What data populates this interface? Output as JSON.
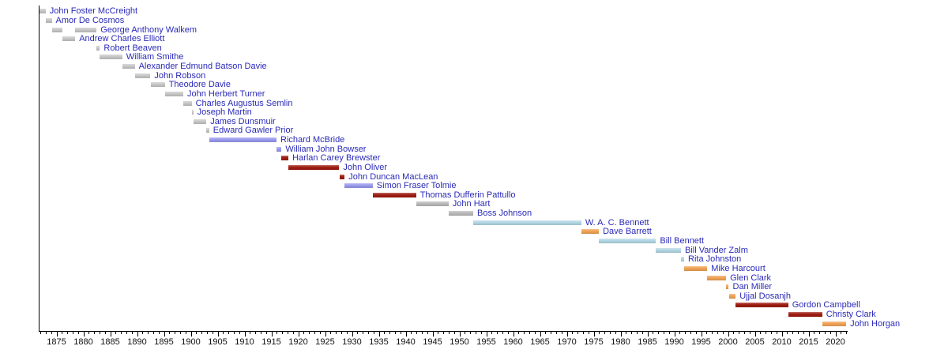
{
  "chart_data": {
    "type": "bar",
    "variant": "horizontal-timeline",
    "description_visible_text_only": true,
    "x_axis": {
      "range": [
        1871.6,
        2022.3
      ],
      "minor_tick_step": 1,
      "major_tick_step": 5,
      "tick_labels": [
        "1875",
        "1880",
        "1885",
        "1890",
        "1895",
        "1900",
        "1905",
        "1910",
        "1915",
        "1920",
        "1925",
        "1930",
        "1935",
        "1940",
        "1945",
        "1950",
        "1955",
        "1960",
        "1965",
        "1970",
        "1975",
        "1980",
        "1985",
        "1990",
        "1995",
        "2000",
        "2005",
        "2010",
        "2015",
        "2020"
      ],
      "grid": false
    },
    "legend": null,
    "label_color": "#2a2ab8",
    "axis_color": "#000000",
    "party_colors": {
      "none": "#c6c6c6",
      "conservative": "#9999ee",
      "liberal": "#9e1c10",
      "coalition": "#b9b9b9",
      "socred": "#b2d6e4",
      "ndp": "#f0a254"
    },
    "series": [
      {
        "name": "John Foster McCreight",
        "party": "none",
        "terms": [
          [
            1871.87,
            1872.98
          ]
        ]
      },
      {
        "name": "Amor De Cosmos",
        "party": "none",
        "terms": [
          [
            1872.98,
            1874.12
          ]
        ]
      },
      {
        "name": "George Anthony Walkem",
        "party": "none",
        "terms": [
          [
            1874.12,
            1876.08
          ],
          [
            1878.48,
            1882.45
          ]
        ]
      },
      {
        "name": "Andrew Charles Elliott",
        "party": "none",
        "terms": [
          [
            1876.08,
            1878.48
          ]
        ]
      },
      {
        "name": "Robert Beaven",
        "party": "none",
        "terms": [
          [
            1882.45,
            1883.08
          ]
        ]
      },
      {
        "name": "William Smithe",
        "party": "none",
        "terms": [
          [
            1883.08,
            1887.24
          ]
        ]
      },
      {
        "name": "Alexander Edmund Batson Davie",
        "party": "none",
        "terms": [
          [
            1887.25,
            1889.58
          ]
        ]
      },
      {
        "name": "John Robson",
        "party": "none",
        "terms": [
          [
            1889.58,
            1892.49
          ]
        ]
      },
      {
        "name": "Theodore Davie",
        "party": "none",
        "terms": [
          [
            1892.5,
            1895.17
          ]
        ]
      },
      {
        "name": "John Herbert Turner",
        "party": "none",
        "terms": [
          [
            1895.17,
            1898.6
          ]
        ]
      },
      {
        "name": "Charles Augustus Semlin",
        "party": "none",
        "terms": [
          [
            1898.62,
            1900.16
          ]
        ]
      },
      {
        "name": "Joseph Martin",
        "party": "none",
        "terms": [
          [
            1900.16,
            1900.45
          ]
        ]
      },
      {
        "name": "James Dunsmuir",
        "party": "none",
        "terms": [
          [
            1900.45,
            1902.89
          ]
        ]
      },
      {
        "name": "Edward Gawler Prior",
        "party": "none",
        "terms": [
          [
            1902.89,
            1903.42
          ]
        ]
      },
      {
        "name": "Richard McBride",
        "party": "conservative",
        "terms": [
          [
            1903.42,
            1915.96
          ]
        ]
      },
      {
        "name": "William John Bowser",
        "party": "conservative",
        "terms": [
          [
            1915.96,
            1916.9
          ]
        ]
      },
      {
        "name": "Harlan Carey Brewster",
        "party": "liberal",
        "terms": [
          [
            1916.9,
            1918.17
          ]
        ]
      },
      {
        "name": "John Oliver",
        "party": "liberal",
        "terms": [
          [
            1918.18,
            1927.63
          ]
        ]
      },
      {
        "name": "John Duncan MacLean",
        "party": "liberal",
        "terms": [
          [
            1927.64,
            1928.64
          ]
        ]
      },
      {
        "name": "Simon Fraser Tolmie",
        "party": "conservative",
        "terms": [
          [
            1928.64,
            1933.87
          ]
        ]
      },
      {
        "name": "Thomas Dufferin Pattullo",
        "party": "liberal",
        "terms": [
          [
            1933.87,
            1941.94
          ]
        ]
      },
      {
        "name": "John Hart",
        "party": "coalition",
        "terms": [
          [
            1941.94,
            1947.99
          ]
        ]
      },
      {
        "name": "Boss Johnson",
        "party": "coalition",
        "terms": [
          [
            1947.99,
            1952.58
          ]
        ]
      },
      {
        "name": "W. A. C. Bennett",
        "party": "socred",
        "terms": [
          [
            1952.58,
            1972.71
          ]
        ]
      },
      {
        "name": "Dave Barrett",
        "party": "ndp",
        "terms": [
          [
            1972.71,
            1975.97
          ]
        ]
      },
      {
        "name": "Bill Bennett",
        "party": "socred",
        "terms": [
          [
            1975.97,
            1986.6
          ]
        ]
      },
      {
        "name": "Bill Vander Zalm",
        "party": "socred",
        "terms": [
          [
            1986.6,
            1991.25
          ]
        ]
      },
      {
        "name": "Rita Johnston",
        "party": "socred",
        "terms": [
          [
            1991.25,
            1991.84
          ]
        ]
      },
      {
        "name": "Mike Harcourt",
        "party": "ndp",
        "terms": [
          [
            1991.84,
            1996.14
          ]
        ]
      },
      {
        "name": "Glen Clark",
        "party": "ndp",
        "terms": [
          [
            1996.14,
            1999.64
          ]
        ]
      },
      {
        "name": "Dan Miller",
        "party": "ndp",
        "terms": [
          [
            1999.65,
            2000.15
          ]
        ]
      },
      {
        "name": "Ujjal Dosanjh",
        "party": "ndp",
        "terms": [
          [
            2000.15,
            2001.43
          ]
        ]
      },
      {
        "name": "Gordon Campbell",
        "party": "liberal",
        "terms": [
          [
            2001.43,
            2011.2
          ]
        ]
      },
      {
        "name": "Christy Clark",
        "party": "liberal",
        "terms": [
          [
            2011.2,
            2017.55
          ]
        ]
      },
      {
        "name": "John Horgan",
        "party": "ndp",
        "terms": [
          [
            2017.55,
            2022.0
          ]
        ]
      }
    ]
  }
}
